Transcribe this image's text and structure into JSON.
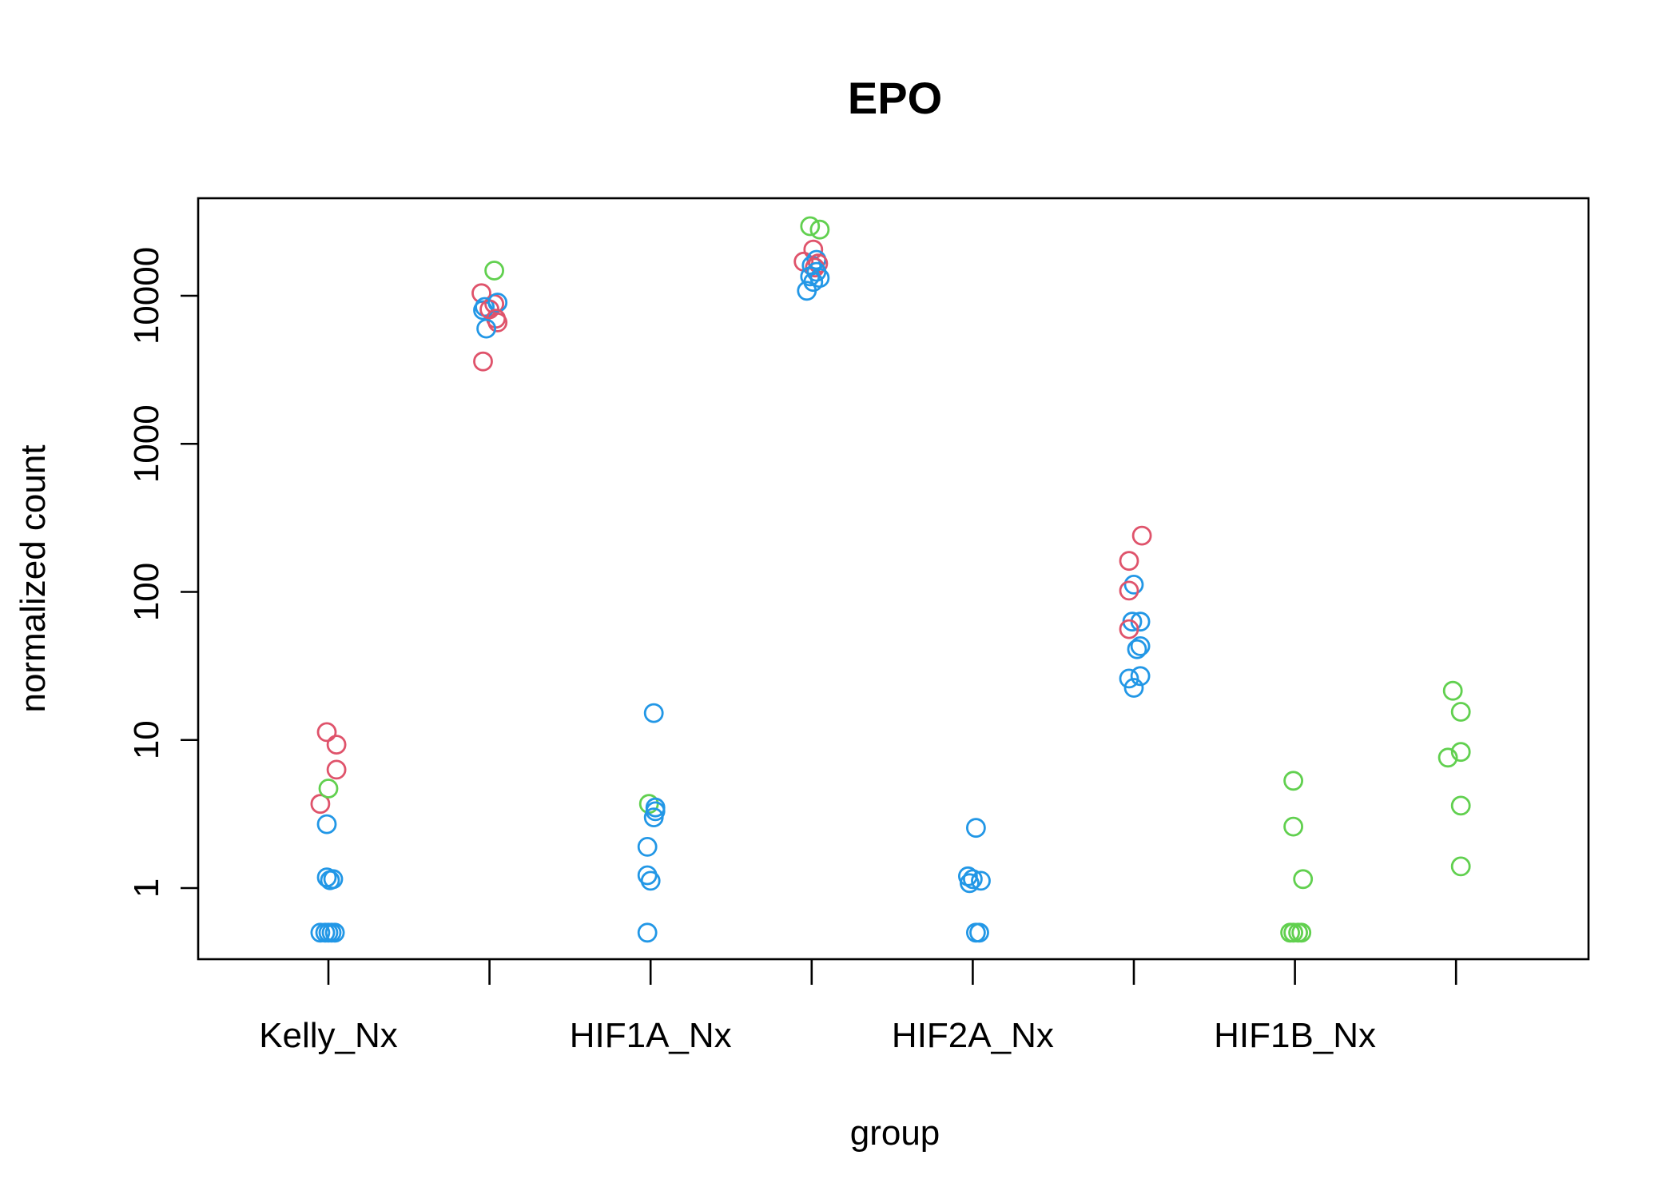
{
  "chart_data": {
    "type": "scatter",
    "title": "EPO",
    "xlabel": "group",
    "ylabel": "normalized count",
    "y_scale": "log",
    "ylim": [
      0.3,
      60000
    ],
    "y_ticks": [
      1,
      10,
      100,
      1000,
      10000
    ],
    "y_tick_labels": [
      "1",
      "10",
      "100",
      "1000",
      "10000"
    ],
    "x_tick_count": 8,
    "x_tick_labels": [
      {
        "index": 1,
        "label": "Kelly_Nx"
      },
      {
        "index": 3,
        "label": "HIF1A_Nx"
      },
      {
        "index": 5,
        "label": "HIF2A_Nx"
      },
      {
        "index": 7,
        "label": "HIF1B_Nx"
      }
    ],
    "grid": false,
    "colors": {
      "red": "#DF536B",
      "green": "#61D04F",
      "blue": "#2297E6"
    },
    "points": [
      {
        "g": 1,
        "dx": -0.05,
        "y": 3.7,
        "c": "red"
      },
      {
        "g": 1,
        "dx": 0.0,
        "y": 4.7,
        "c": "green"
      },
      {
        "g": 1,
        "dx": 0.05,
        "y": 6.3,
        "c": "red"
      },
      {
        "g": 1,
        "dx": 0.05,
        "y": 9.3,
        "c": "red"
      },
      {
        "g": 1,
        "dx": -0.01,
        "y": 11.3,
        "c": "red"
      },
      {
        "g": 1,
        "dx": -0.01,
        "y": 2.7,
        "c": "blue"
      },
      {
        "g": 1,
        "dx": -0.01,
        "y": 1.18,
        "c": "blue"
      },
      {
        "g": 1,
        "dx": 0.01,
        "y": 1.13,
        "c": "blue"
      },
      {
        "g": 1,
        "dx": 0.03,
        "y": 1.15,
        "c": "blue"
      },
      {
        "g": 1,
        "dx": -0.05,
        "y": 0.5,
        "c": "blue"
      },
      {
        "g": 1,
        "dx": -0.02,
        "y": 0.5,
        "c": "blue"
      },
      {
        "g": 1,
        "dx": 0.0,
        "y": 0.5,
        "c": "blue"
      },
      {
        "g": 1,
        "dx": 0.02,
        "y": 0.5,
        "c": "blue"
      },
      {
        "g": 1,
        "dx": 0.04,
        "y": 0.5,
        "c": "blue"
      },
      {
        "g": 2,
        "dx": 0.03,
        "y": 14800,
        "c": "green"
      },
      {
        "g": 2,
        "dx": -0.05,
        "y": 10400,
        "c": "red"
      },
      {
        "g": 2,
        "dx": 0.03,
        "y": 8800,
        "c": "red"
      },
      {
        "g": 2,
        "dx": -0.04,
        "y": 8000,
        "c": "blue"
      },
      {
        "g": 2,
        "dx": -0.03,
        "y": 8400,
        "c": "blue"
      },
      {
        "g": 2,
        "dx": 0.0,
        "y": 8100,
        "c": "red"
      },
      {
        "g": 2,
        "dx": 0.05,
        "y": 9000,
        "c": "blue"
      },
      {
        "g": 2,
        "dx": 0.04,
        "y": 7000,
        "c": "red"
      },
      {
        "g": 2,
        "dx": 0.05,
        "y": 6600,
        "c": "red"
      },
      {
        "g": 2,
        "dx": -0.02,
        "y": 6000,
        "c": "blue"
      },
      {
        "g": 2,
        "dx": -0.04,
        "y": 3600,
        "c": "red"
      },
      {
        "g": 3,
        "dx": 0.02,
        "y": 15.2,
        "c": "blue"
      },
      {
        "g": 3,
        "dx": -0.01,
        "y": 3.7,
        "c": "green"
      },
      {
        "g": 3,
        "dx": 0.03,
        "y": 3.5,
        "c": "blue"
      },
      {
        "g": 3,
        "dx": 0.03,
        "y": 3.3,
        "c": "blue"
      },
      {
        "g": 3,
        "dx": 0.02,
        "y": 3.0,
        "c": "blue"
      },
      {
        "g": 3,
        "dx": -0.02,
        "y": 1.9,
        "c": "blue"
      },
      {
        "g": 3,
        "dx": -0.02,
        "y": 1.22,
        "c": "blue"
      },
      {
        "g": 3,
        "dx": 0.0,
        "y": 1.12,
        "c": "blue"
      },
      {
        "g": 3,
        "dx": -0.02,
        "y": 0.5,
        "c": "blue"
      },
      {
        "g": 4,
        "dx": -0.01,
        "y": 29500,
        "c": "green"
      },
      {
        "g": 4,
        "dx": 0.05,
        "y": 28000,
        "c": "green"
      },
      {
        "g": 4,
        "dx": 0.01,
        "y": 20500,
        "c": "red"
      },
      {
        "g": 4,
        "dx": -0.05,
        "y": 17000,
        "c": "red"
      },
      {
        "g": 4,
        "dx": 0.03,
        "y": 17500,
        "c": "blue"
      },
      {
        "g": 4,
        "dx": 0.0,
        "y": 16000,
        "c": "blue"
      },
      {
        "g": 4,
        "dx": 0.04,
        "y": 16500,
        "c": "red"
      },
      {
        "g": 4,
        "dx": 0.02,
        "y": 15500,
        "c": "red"
      },
      {
        "g": 4,
        "dx": 0.03,
        "y": 14500,
        "c": "blue"
      },
      {
        "g": 4,
        "dx": -0.01,
        "y": 13500,
        "c": "blue"
      },
      {
        "g": 4,
        "dx": 0.05,
        "y": 13200,
        "c": "blue"
      },
      {
        "g": 4,
        "dx": 0.01,
        "y": 12400,
        "c": "blue"
      },
      {
        "g": 4,
        "dx": -0.03,
        "y": 10800,
        "c": "blue"
      },
      {
        "g": 5,
        "dx": 0.02,
        "y": 2.55,
        "c": "blue"
      },
      {
        "g": 5,
        "dx": -0.03,
        "y": 1.2,
        "c": "blue"
      },
      {
        "g": 5,
        "dx": 0.0,
        "y": 1.15,
        "c": "blue"
      },
      {
        "g": 5,
        "dx": 0.05,
        "y": 1.12,
        "c": "blue"
      },
      {
        "g": 5,
        "dx": -0.02,
        "y": 1.08,
        "c": "blue"
      },
      {
        "g": 5,
        "dx": 0.02,
        "y": 0.5,
        "c": "blue"
      },
      {
        "g": 5,
        "dx": 0.04,
        "y": 0.5,
        "c": "blue"
      },
      {
        "g": 6,
        "dx": 0.05,
        "y": 240,
        "c": "red"
      },
      {
        "g": 6,
        "dx": -0.03,
        "y": 162,
        "c": "red"
      },
      {
        "g": 6,
        "dx": 0.0,
        "y": 112,
        "c": "blue"
      },
      {
        "g": 6,
        "dx": -0.03,
        "y": 102,
        "c": "red"
      },
      {
        "g": 6,
        "dx": -0.01,
        "y": 63,
        "c": "blue"
      },
      {
        "g": 6,
        "dx": 0.04,
        "y": 63,
        "c": "blue"
      },
      {
        "g": 6,
        "dx": -0.03,
        "y": 56,
        "c": "red"
      },
      {
        "g": 6,
        "dx": 0.04,
        "y": 43,
        "c": "blue"
      },
      {
        "g": 6,
        "dx": 0.02,
        "y": 41,
        "c": "blue"
      },
      {
        "g": 6,
        "dx": 0.04,
        "y": 27,
        "c": "blue"
      },
      {
        "g": 6,
        "dx": -0.03,
        "y": 26,
        "c": "blue"
      },
      {
        "g": 6,
        "dx": 0.0,
        "y": 22.5,
        "c": "blue"
      },
      {
        "g": 7,
        "dx": -0.01,
        "y": 5.3,
        "c": "green"
      },
      {
        "g": 7,
        "dx": -0.01,
        "y": 2.6,
        "c": "green"
      },
      {
        "g": 7,
        "dx": 0.05,
        "y": 1.15,
        "c": "green"
      },
      {
        "g": 7,
        "dx": -0.03,
        "y": 0.5,
        "c": "green"
      },
      {
        "g": 7,
        "dx": -0.01,
        "y": 0.5,
        "c": "green"
      },
      {
        "g": 7,
        "dx": 0.02,
        "y": 0.5,
        "c": "green"
      },
      {
        "g": 7,
        "dx": 0.04,
        "y": 0.5,
        "c": "green"
      },
      {
        "g": 8,
        "dx": -0.02,
        "y": 21.5,
        "c": "green"
      },
      {
        "g": 8,
        "dx": 0.03,
        "y": 15.5,
        "c": "green"
      },
      {
        "g": 8,
        "dx": 0.03,
        "y": 8.3,
        "c": "green"
      },
      {
        "g": 8,
        "dx": -0.05,
        "y": 7.6,
        "c": "green"
      },
      {
        "g": 8,
        "dx": 0.03,
        "y": 3.6,
        "c": "green"
      },
      {
        "g": 8,
        "dx": 0.03,
        "y": 1.4,
        "c": "green"
      }
    ]
  }
}
